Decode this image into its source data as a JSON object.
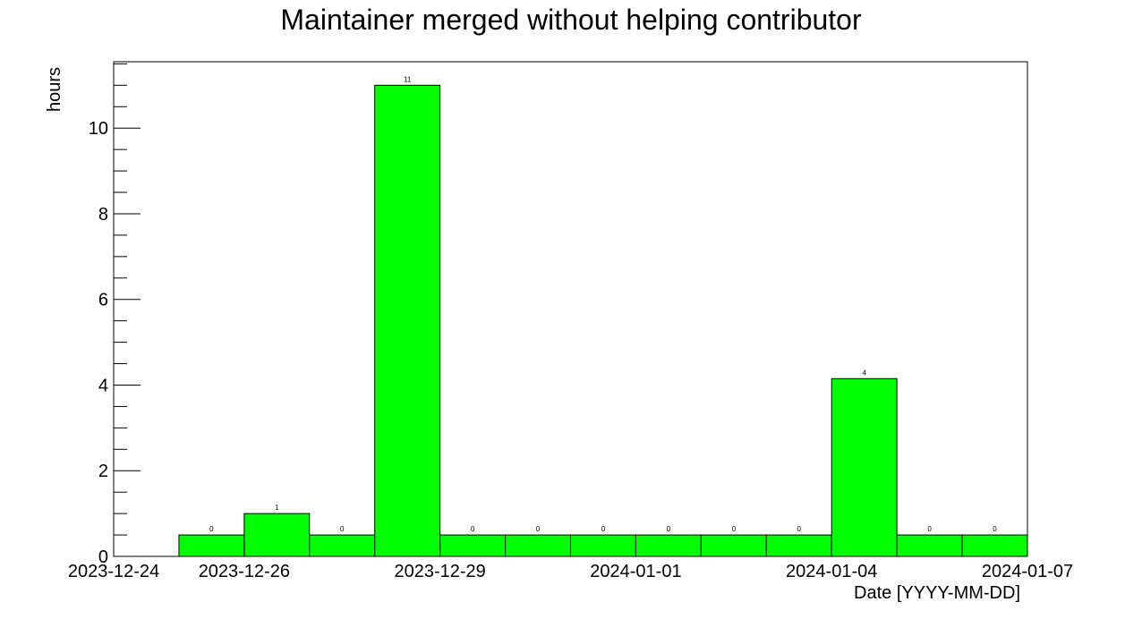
{
  "chart_data": {
    "type": "bar",
    "title": "Maintainer merged without helping contributor",
    "xlabel": "Date [YYYY-MM-DD]",
    "ylabel": "hours",
    "x_tick_labels": [
      "2023-12-24",
      "2023-12-26",
      "2023-12-29",
      "2024-01-01",
      "2024-01-04",
      "2024-01-07"
    ],
    "y_tick_labels": [
      "0",
      "2",
      "4",
      "6",
      "8",
      "10"
    ],
    "ylim": [
      0,
      11.55
    ],
    "xlim": [
      "2023-12-24",
      "2024-01-07"
    ],
    "grid": false,
    "bar_color": "#00ff00",
    "categories": [
      "2023-12-25",
      "2023-12-26",
      "2023-12-27",
      "2023-12-28",
      "2023-12-29",
      "2023-12-30",
      "2023-12-31",
      "2024-01-01",
      "2024-01-02",
      "2024-01-03",
      "2024-01-04",
      "2024-01-05",
      "2024-01-06"
    ],
    "values": [
      0.5,
      1,
      0.5,
      11,
      0.5,
      0.5,
      0.5,
      0.5,
      0.5,
      0.5,
      4.15,
      0.5,
      0.5
    ],
    "data_labels": [
      "0",
      "1",
      "0",
      "11",
      "0",
      "0",
      "0",
      "0",
      "0",
      "0",
      "4",
      "0",
      "0"
    ]
  }
}
